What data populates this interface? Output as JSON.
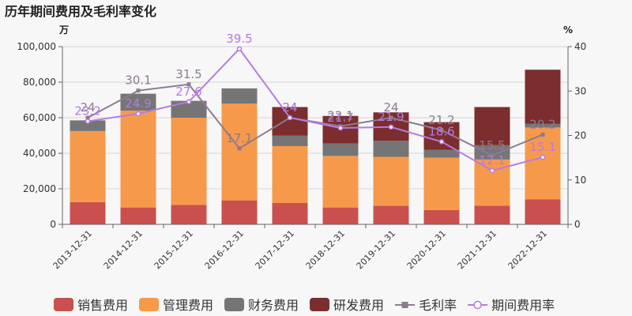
{
  "chart_data": {
    "type": "bar",
    "title": "历年期间费用及毛利率变化",
    "y_left_unit": "万",
    "y_right_unit": "%",
    "y_left_range": [
      0,
      100000
    ],
    "y_left_ticks": [
      "0",
      "20,000",
      "40,000",
      "60,000",
      "80,000",
      "100,000"
    ],
    "y_right_range": [
      0,
      40
    ],
    "y_right_ticks": [
      "0",
      "10",
      "20",
      "30",
      "40"
    ],
    "categories": [
      "2013-12-31",
      "2014-12-31",
      "2015-12-31",
      "2016-12-31",
      "2017-12-31",
      "2018-12-31",
      "2019-12-31",
      "2020-12-31",
      "2021-12-31",
      "2022-12-31"
    ],
    "legend_position": "bottom",
    "bar_series": [
      {
        "name": "销售费用",
        "color": "#c9504f",
        "values": [
          12500,
          9500,
          11000,
          13500,
          12000,
          9500,
          10500,
          8000,
          10500,
          14000
        ]
      },
      {
        "name": "管理费用",
        "color": "#f7994b",
        "values": [
          40000,
          54500,
          49000,
          54500,
          32000,
          29000,
          27500,
          29500,
          26000,
          40500
        ]
      },
      {
        "name": "财务费用",
        "color": "#757575",
        "values": [
          6000,
          9500,
          9500,
          8500,
          6000,
          7000,
          9000,
          4500,
          8000,
          2000
        ]
      },
      {
        "name": "研发费用",
        "color": "#7c2d2d",
        "values": [
          0,
          0,
          0,
          0,
          16000,
          15500,
          16000,
          15500,
          21500,
          30500
        ]
      }
    ],
    "line_series": [
      {
        "name": "毛利率",
        "color": "#8c7b90",
        "values": [
          24,
          30.1,
          31.5,
          17.1,
          24,
          22.1,
          24,
          21.2,
          15.5,
          20.2
        ],
        "labels": [
          "24",
          "30.1",
          "31.5",
          "17.1",
          "24",
          "22.1",
          "24",
          "21.2",
          "15.5",
          "20.2"
        ]
      },
      {
        "name": "期间费用率",
        "color": "#b57be3",
        "values": [
          23.2,
          24.9,
          27.6,
          39.5,
          24,
          21.7,
          21.9,
          18.6,
          12.1,
          15.1
        ],
        "labels": [
          "23.2",
          "24.9",
          "27.6",
          "39.5",
          "24",
          "21.7",
          "21.9",
          "18.6",
          "12.1",
          "15.1"
        ]
      }
    ]
  }
}
